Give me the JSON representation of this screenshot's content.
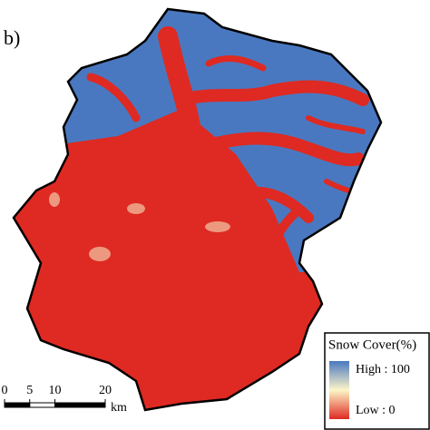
{
  "panel_label": "b)",
  "legend": {
    "title": "Snow Cover(%)",
    "high_label": "High : 100",
    "low_label": "Low : 0"
  },
  "scale_bar": {
    "ticks": [
      0,
      5,
      10,
      20
    ],
    "unit": "km"
  }
}
